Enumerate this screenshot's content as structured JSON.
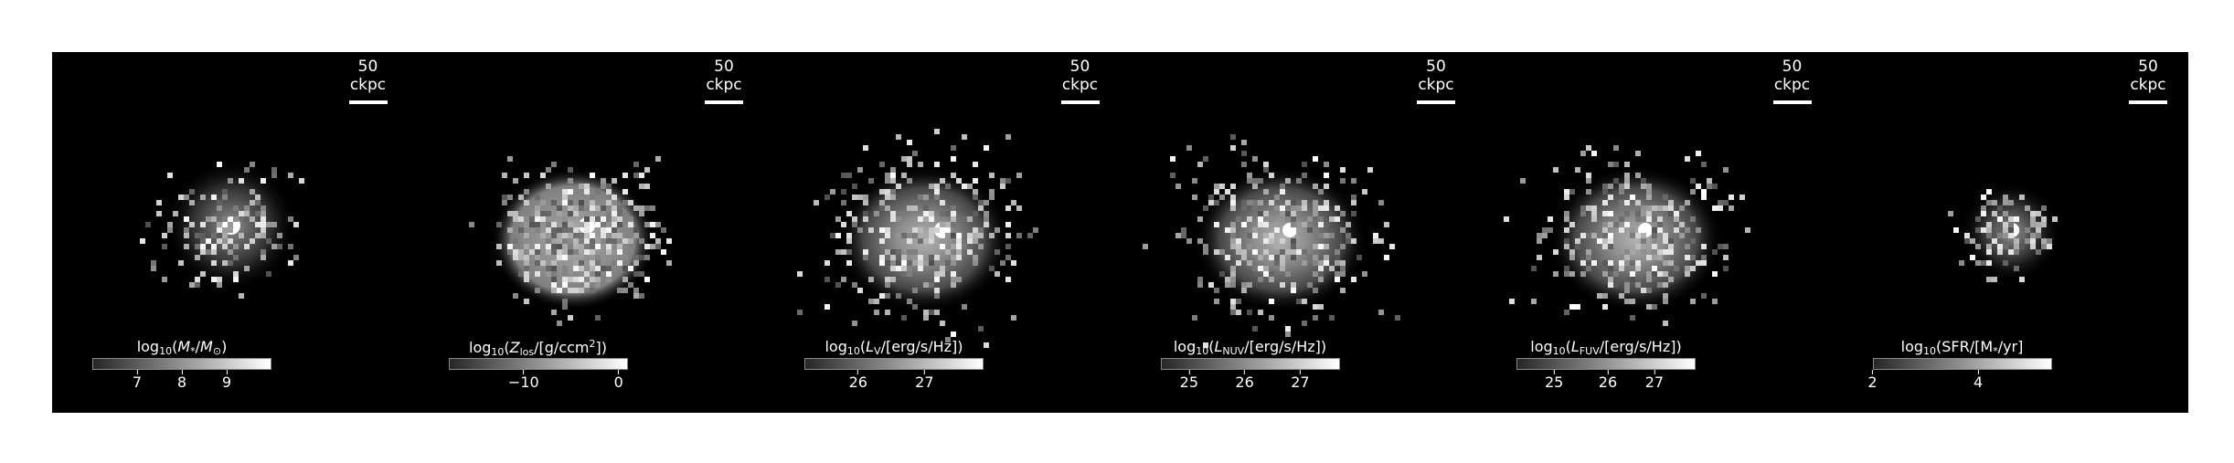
{
  "panels": [
    {
      "scalebar": "50 ckpc",
      "colorbar": {
        "label": {
          "pre": "log",
          "sub1": "10",
          "open": "(",
          "var": "M",
          "sub2": "*",
          "rest": "/",
          "var2": "M",
          "sub3": "⊙",
          "close": ")"
        },
        "ticks": [
          {
            "label": "7",
            "frac": 0.25
          },
          {
            "label": "8",
            "frac": 0.5
          },
          {
            "label": "9",
            "frac": 0.75
          }
        ]
      }
    },
    {
      "scalebar": "50 ckpc",
      "colorbar": {
        "label": {
          "pre": "log",
          "sub1": "10",
          "open": "(",
          "var": "Z",
          "sub2": "los",
          "rest": "/[g/ccm",
          "sup": "2",
          "close": "])"
        },
        "ticks": [
          {
            "label": "−10",
            "frac": 0.42
          },
          {
            "label": "0",
            "frac": 0.95
          }
        ]
      }
    },
    {
      "scalebar": "50 ckpc",
      "colorbar": {
        "label": {
          "pre": "log",
          "sub1": "10",
          "open": "(",
          "var": "L",
          "sub2": "V",
          "rest": "/[erg/s/Hz]",
          "close": ")"
        },
        "ticks": [
          {
            "label": "26",
            "frac": 0.3
          },
          {
            "label": "27",
            "frac": 0.67
          }
        ]
      }
    },
    {
      "scalebar": "50 ckpc",
      "colorbar": {
        "label": {
          "pre": "log",
          "sub1": "10",
          "open": "(",
          "var": "L",
          "sub2": "NUV",
          "rest": "/[erg/s/Hz]",
          "close": ")"
        },
        "ticks": [
          {
            "label": "25",
            "frac": 0.16
          },
          {
            "label": "26",
            "frac": 0.47
          },
          {
            "label": "27",
            "frac": 0.78
          }
        ]
      }
    },
    {
      "scalebar": "50 ckpc",
      "colorbar": {
        "label": {
          "pre": "log",
          "sub1": "10",
          "open": "(",
          "var": "L",
          "sub2": "FUV",
          "rest": "/[erg/s/Hz]",
          "close": ")"
        },
        "ticks": [
          {
            "label": "25",
            "frac": 0.21
          },
          {
            "label": "26",
            "frac": 0.51
          },
          {
            "label": "27",
            "frac": 0.77
          }
        ]
      }
    },
    {
      "scalebar": "50 ckpc",
      "colorbar": {
        "label": {
          "pre": "log",
          "sub1": "10",
          "open": "(",
          "var": "",
          "sub2": "",
          "rest": "SFR/[M",
          "sub3": "*",
          "tail": "/yr]",
          "close": ")"
        },
        "ticks": [
          {
            "label": "2",
            "frac": 0.0
          },
          {
            "label": "4",
            "frac": 0.59
          }
        ]
      }
    }
  ]
}
